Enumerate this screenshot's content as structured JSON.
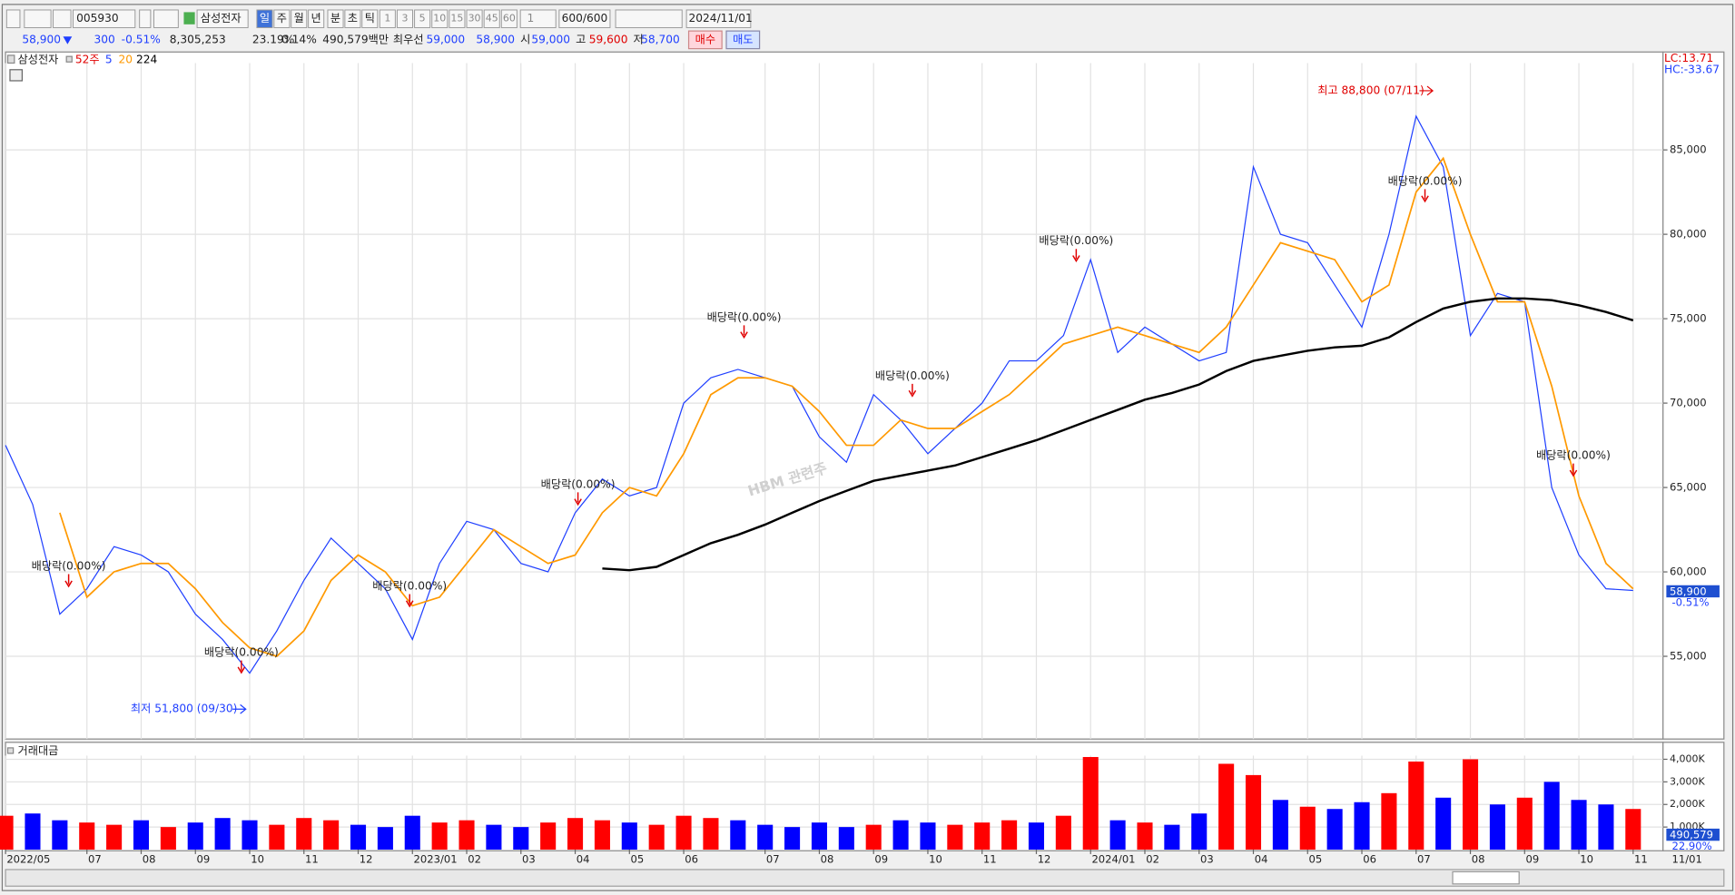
{
  "toolbar": {
    "code": "005930",
    "name": "삼성전자",
    "periods": [
      "일",
      "주",
      "월",
      "년",
      "분",
      "초",
      "틱"
    ],
    "minutes": [
      "1",
      "3",
      "5",
      "10",
      "15",
      "30",
      "45",
      "60"
    ],
    "count_select": "1",
    "count": "600/600",
    "date": "2024/11/01"
  },
  "quote": {
    "price": "58,900",
    "change": "300",
    "change_rate": "-0.51%",
    "volume": "8,305,253",
    "turnover_rate": "23.19%",
    "ratio": "0.14%",
    "amount": "490,579백만",
    "best_label": "최우선",
    "ask": "59,000",
    "bid": "58,900",
    "open_label": "시",
    "open": "59,000",
    "high_label": "고",
    "high": "59,600",
    "low_label": "저",
    "low": "58,700",
    "buy": "매수",
    "sell": "매도"
  },
  "chart_data": [
    {
      "type": "line",
      "title": "삼성전자",
      "period_label": "52주",
      "categories": [
        "2022/05",
        null,
        null,
        "07",
        null,
        "08",
        null,
        "09",
        null,
        "10",
        null,
        "11",
        null,
        "12",
        null,
        "2023/01",
        null,
        "02",
        null,
        "03",
        null,
        "04",
        null,
        "05",
        null,
        "06",
        null,
        null,
        "07",
        null,
        "08",
        null,
        "09",
        null,
        "10",
        null,
        "11",
        null,
        "12",
        null,
        "2024/01",
        null,
        "02",
        null,
        "03",
        null,
        "04",
        null,
        "05",
        null,
        "06",
        null,
        "07",
        null,
        "08",
        null,
        "09",
        null,
        "10",
        null,
        "11"
      ],
      "series": [
        {
          "name": "5",
          "color": "#1f3fff",
          "values": [
            67500,
            64000,
            57500,
            59000,
            61500,
            61000,
            60000,
            57500,
            56000,
            54000,
            56500,
            59500,
            62000,
            60500,
            59000,
            56000,
            60500,
            63000,
            62500,
            60500,
            60000,
            63500,
            65500,
            64500,
            65000,
            70000,
            71500,
            72000,
            71500,
            71000,
            68000,
            66500,
            70500,
            69000,
            67000,
            68500,
            70000,
            72500,
            72500,
            74000,
            78500,
            73000,
            74500,
            73500,
            72500,
            73000,
            84000,
            80000,
            79500,
            77000,
            74500,
            80000,
            87000,
            84000,
            74000,
            76500,
            76000,
            65000,
            61000,
            59000,
            58900
          ]
        },
        {
          "name": "20",
          "color": "#ff9900",
          "values": [
            null,
            null,
            63500,
            58500,
            60000,
            60500,
            60500,
            59000,
            57000,
            55500,
            55000,
            56500,
            59500,
            61000,
            60000,
            58000,
            58500,
            60500,
            62500,
            61500,
            60500,
            61000,
            63500,
            65000,
            64500,
            67000,
            70500,
            71500,
            71500,
            71000,
            69500,
            67500,
            67500,
            69000,
            68500,
            68500,
            69500,
            70500,
            72000,
            73500,
            74000,
            74500,
            74000,
            73500,
            73000,
            74500,
            77000,
            79500,
            79000,
            78500,
            76000,
            77000,
            82500,
            84500,
            80000,
            76000,
            76000,
            71000,
            64500,
            60500,
            59000
          ]
        },
        {
          "name": "224",
          "color": "#000000",
          "values": [
            null,
            null,
            null,
            null,
            null,
            null,
            null,
            null,
            null,
            null,
            null,
            null,
            null,
            null,
            null,
            null,
            null,
            null,
            null,
            null,
            null,
            null,
            60200,
            60100,
            60300,
            61000,
            61700,
            62200,
            62800,
            63500,
            64200,
            64800,
            65400,
            65700,
            66000,
            66300,
            66800,
            67300,
            67800,
            68400,
            69000,
            69600,
            70200,
            70600,
            71100,
            71900,
            72500,
            72800,
            73100,
            73300,
            73400,
            73900,
            74800,
            75600,
            76000,
            76200,
            76200,
            76100,
            75800,
            75400,
            74900
          ]
        }
      ],
      "ylim": [
        50100,
        90800
      ],
      "yticks": [
        {
          "value": 55000,
          "label": "55,000"
        },
        {
          "value": 60000,
          "label": "60,000"
        },
        {
          "value": 65000,
          "label": "65,000"
        },
        {
          "value": 70000,
          "label": "70,000"
        },
        {
          "value": 75000,
          "label": "75,000"
        },
        {
          "value": 80000,
          "label": "80,000"
        },
        {
          "value": 85000,
          "label": "85,000"
        }
      ],
      "grid": true,
      "annotations": {
        "high": "최고 88,800 (07/11)",
        "low": "최저 51,800 (09/30)",
        "dividend": "배당락(0.00%)",
        "watermark": "HBM 관련주"
      },
      "lc": "LC:13.71",
      "hc": "HC:-33.67",
      "x_end_label": "11/01"
    },
    {
      "type": "bar",
      "title": "거래대금",
      "values": [
        1500,
        1600,
        1300,
        1200,
        1100,
        1300,
        1000,
        1200,
        1400,
        1300,
        1100,
        1400,
        1300,
        1100,
        1000,
        1500,
        1200,
        1300,
        1100,
        1000,
        1200,
        1400,
        1300,
        1200,
        1100,
        1500,
        1400,
        1300,
        1100,
        1000,
        1200,
        1000,
        1100,
        1300,
        1200,
        1100,
        1200,
        1300,
        1200,
        1500,
        4100,
        1300,
        1200,
        1100,
        1600,
        3800,
        3300,
        2200,
        1900,
        1800,
        2100,
        2500,
        3900,
        2300,
        4000,
        2000,
        2300,
        3000,
        2200,
        2000,
        1800
      ],
      "colors": [
        "#ff0000",
        "#0000ff",
        "#0000ff",
        "#ff0000",
        "#ff0000",
        "#0000ff",
        "#ff0000",
        "#0000ff",
        "#0000ff",
        "#0000ff",
        "#ff0000",
        "#ff0000",
        "#ff0000",
        "#0000ff",
        "#0000ff",
        "#0000ff",
        "#ff0000",
        "#ff0000",
        "#0000ff",
        "#0000ff",
        "#ff0000",
        "#ff0000",
        "#ff0000",
        "#0000ff",
        "#ff0000",
        "#ff0000",
        "#ff0000",
        "#0000ff",
        "#0000ff",
        "#0000ff",
        "#0000ff",
        "#0000ff",
        "#ff0000",
        "#0000ff",
        "#0000ff",
        "#ff0000",
        "#ff0000",
        "#ff0000",
        "#0000ff",
        "#ff0000",
        "#ff0000",
        "#0000ff",
        "#ff0000",
        "#0000ff",
        "#0000ff",
        "#ff0000",
        "#ff0000",
        "#0000ff",
        "#ff0000",
        "#0000ff",
        "#0000ff",
        "#ff0000",
        "#ff0000",
        "#0000ff",
        "#ff0000",
        "#0000ff",
        "#ff0000",
        "#0000ff",
        "#0000ff",
        "#0000ff",
        "#ff0000"
      ],
      "ylim": [
        0,
        4750
      ],
      "yticks": [
        {
          "value": 1000,
          "label": "1,000K"
        },
        {
          "value": 2000,
          "label": "2,000K"
        },
        {
          "value": 3000,
          "label": "3,000K"
        },
        {
          "value": 4000,
          "label": "4,000K"
        }
      ],
      "last_value": "490,579",
      "last_rate": "22.90%"
    }
  ]
}
